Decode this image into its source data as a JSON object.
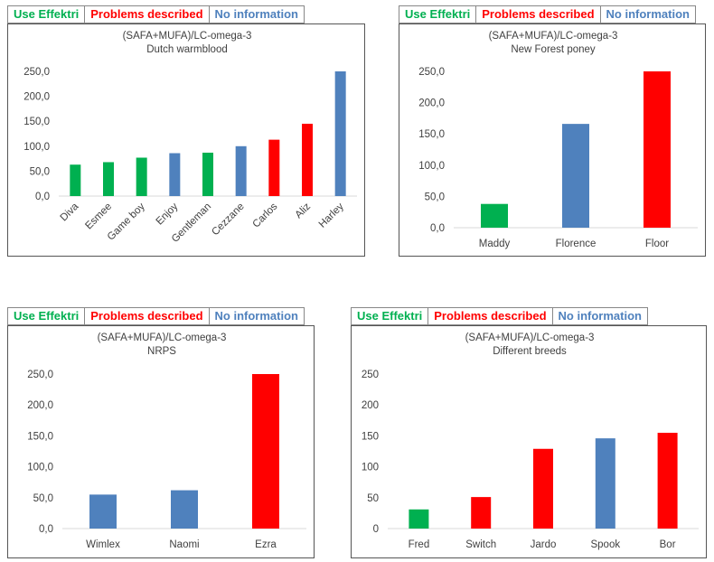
{
  "legend": {
    "items": [
      {
        "label": "Use Effektri",
        "color": "#00b050"
      },
      {
        "label": "Problems described",
        "color": "#ff0000"
      },
      {
        "label": "No information",
        "color": "#4f81bd"
      }
    ]
  },
  "colors": {
    "green": "#00b050",
    "red": "#ff0000",
    "blue": "#4f81bd"
  },
  "chart_data": [
    {
      "type": "bar",
      "title": "(SAFA+MUFA)/LC-omega-3",
      "subtitle": "Dutch warmblood",
      "categories": [
        "Diva",
        "Esmee",
        "Game boy",
        "Enjoy",
        "Gentleman",
        "Cezzane",
        "Carlos",
        "Aliz",
        "Harley"
      ],
      "values": [
        63,
        68,
        77,
        86,
        87,
        100,
        113,
        145,
        250
      ],
      "bar_colors": [
        "green",
        "green",
        "green",
        "blue",
        "green",
        "blue",
        "red",
        "red",
        "blue"
      ],
      "yticks": [
        "0,0",
        "50,0",
        "100,0",
        "150,0",
        "200,0",
        "250,0"
      ],
      "ylim": [
        0,
        250
      ],
      "xlabel": "",
      "ylabel": "",
      "grid": false
    },
    {
      "type": "bar",
      "title": "(SAFA+MUFA)/LC-omega-3",
      "subtitle": "New Forest poney",
      "categories": [
        "Maddy",
        "Florence",
        "Floor"
      ],
      "values": [
        38,
        166,
        250
      ],
      "bar_colors": [
        "green",
        "blue",
        "red"
      ],
      "yticks": [
        "0,0",
        "50,0",
        "100,0",
        "150,0",
        "200,0",
        "250,0"
      ],
      "ylim": [
        0,
        250
      ],
      "xlabel": "",
      "ylabel": "",
      "grid": false
    },
    {
      "type": "bar",
      "title": "(SAFA+MUFA)/LC-omega-3",
      "subtitle": "NRPS",
      "categories": [
        "Wimlex",
        "Naomi",
        "Ezra"
      ],
      "values": [
        55,
        62,
        250
      ],
      "bar_colors": [
        "blue",
        "blue",
        "red"
      ],
      "yticks": [
        "0,0",
        "50,0",
        "100,0",
        "150,0",
        "200,0",
        "250,0"
      ],
      "ylim": [
        0,
        250
      ],
      "xlabel": "",
      "ylabel": "",
      "grid": false
    },
    {
      "type": "bar",
      "title": "(SAFA+MUFA)/LC-omega-3",
      "subtitle": "Different breeds",
      "categories": [
        "Fred",
        "Switch",
        "Jardo",
        "Spook",
        "Bor"
      ],
      "values": [
        31,
        51,
        129,
        146,
        155
      ],
      "bar_colors": [
        "green",
        "red",
        "red",
        "blue",
        "red"
      ],
      "yticks": [
        "0",
        "50",
        "100",
        "150",
        "200",
        "250"
      ],
      "ylim": [
        0,
        250
      ],
      "xlabel": "",
      "ylabel": "",
      "grid": false
    }
  ]
}
